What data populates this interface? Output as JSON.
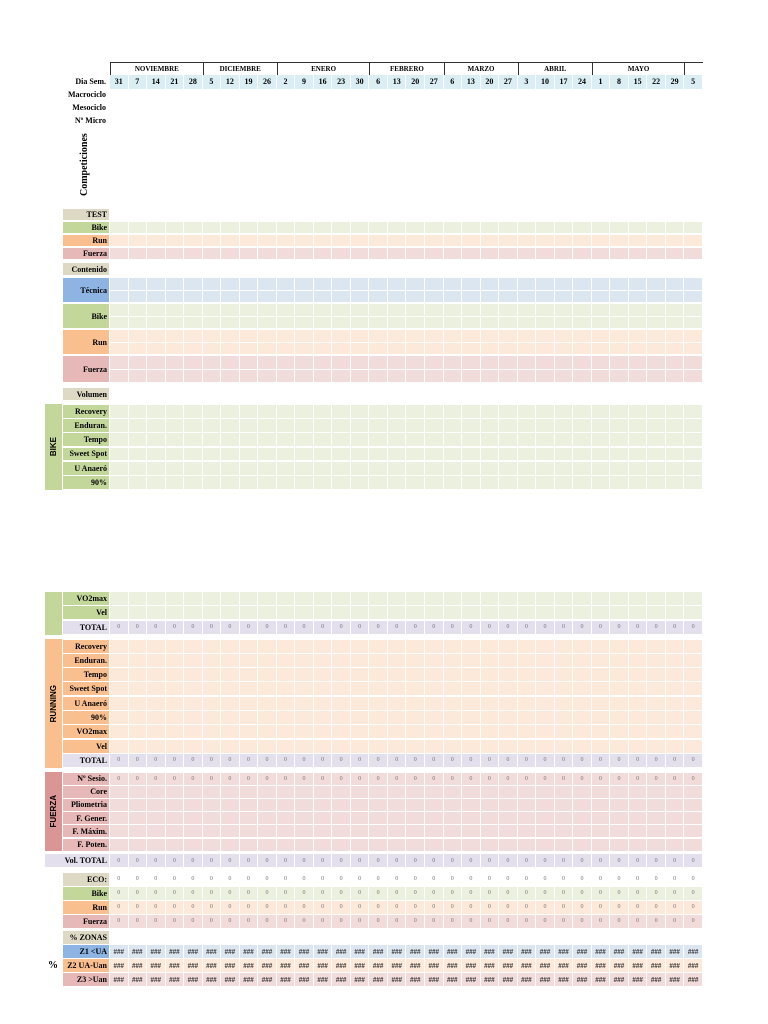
{
  "header": {
    "months": [
      {
        "name": "NOVIEMBRE",
        "span": 5
      },
      {
        "name": "DICIEMBRE",
        "span": 4
      },
      {
        "name": "ENERO",
        "span": 5
      },
      {
        "name": "FEBRERO",
        "span": 4
      },
      {
        "name": "MARZO",
        "span": 4
      },
      {
        "name": "ABRIL",
        "span": 4
      },
      {
        "name": "MAYO",
        "span": 5
      },
      {
        "name": "",
        "span": 1
      }
    ],
    "dates": [
      "31",
      "7",
      "14",
      "21",
      "28",
      "5",
      "12",
      "19",
      "26",
      "2",
      "9",
      "16",
      "23",
      "30",
      "6",
      "13",
      "20",
      "27",
      "6",
      "13",
      "20",
      "27",
      "3",
      "10",
      "17",
      "24",
      "1",
      "8",
      "15",
      "22",
      "29",
      "5"
    ],
    "dia_sem": "Dia Sem.",
    "macrociclo": "Macrociclo",
    "mesociclo": "Mesociclo",
    "micro": "Nº Micro",
    "competiciones": "Competiciones"
  },
  "side_labels": {
    "bike": "BIKE",
    "running": "RUNNING",
    "fuerza": "FUERZA",
    "percent": "%"
  },
  "rows": [
    {
      "label": "TEST",
      "theme": "test",
      "cells": false
    },
    {
      "label": "Bike",
      "theme": "bike",
      "cells": true,
      "value": ""
    },
    {
      "label": "Run",
      "theme": "run",
      "cells": true,
      "value": ""
    },
    {
      "label": "Fuerza",
      "theme": "fuerza",
      "cells": true,
      "value": ""
    },
    {
      "label": "Contenido",
      "theme": "test",
      "cells": false
    },
    {
      "label": "Técnica",
      "theme": "tecnica",
      "cells": true,
      "value": "",
      "split": true
    },
    {
      "label": "Bike",
      "theme": "bike",
      "cells": true,
      "value": "",
      "split": true
    },
    {
      "label": "Run",
      "theme": "run",
      "cells": true,
      "value": "",
      "split": true
    },
    {
      "label": "Fuerza",
      "theme": "fuerza",
      "cells": true,
      "value": "",
      "split": true
    },
    {
      "label": "Volumen",
      "theme": "test",
      "cells": false
    },
    {
      "label": "Recovery",
      "theme": "bike",
      "cells": true,
      "value": ""
    },
    {
      "label": "Enduran.",
      "theme": "bike",
      "cells": true,
      "value": ""
    },
    {
      "label": "Tempo",
      "theme": "bike",
      "cells": true,
      "value": ""
    },
    {
      "label": "Sweet Spot",
      "theme": "bike",
      "cells": true,
      "value": ""
    },
    {
      "label": "U Anaeró",
      "theme": "bike",
      "cells": true,
      "value": ""
    },
    {
      "label": "90%",
      "theme": "bike",
      "cells": true,
      "value": ""
    },
    {
      "label": "VO2max",
      "theme": "bike",
      "cells": true,
      "value": ""
    },
    {
      "label": "Vel",
      "theme": "bike",
      "cells": true,
      "value": ""
    },
    {
      "label": "TOTAL",
      "theme": "total",
      "cells": true,
      "value": "0"
    },
    {
      "label": "Recovery",
      "theme": "run",
      "cells": true,
      "value": ""
    },
    {
      "label": "Enduran.",
      "theme": "run",
      "cells": true,
      "value": ""
    },
    {
      "label": "Tempo",
      "theme": "run",
      "cells": true,
      "value": ""
    },
    {
      "label": "Sweet Spot",
      "theme": "run",
      "cells": true,
      "value": ""
    },
    {
      "label": "U Anaeró",
      "theme": "run",
      "cells": true,
      "value": ""
    },
    {
      "label": "90%",
      "theme": "run",
      "cells": true,
      "value": ""
    },
    {
      "label": "VO2max",
      "theme": "run",
      "cells": true,
      "value": ""
    },
    {
      "label": "Vel",
      "theme": "run",
      "cells": true,
      "value": ""
    },
    {
      "label": "TOTAL",
      "theme": "total",
      "cells": true,
      "value": "0"
    },
    {
      "label": "Nº Sesio.",
      "theme": "fuerza",
      "cells": true,
      "value": "0"
    },
    {
      "label": "Core",
      "theme": "fuerza",
      "cells": true,
      "value": ""
    },
    {
      "label": "Pliometria",
      "theme": "fuerza",
      "cells": true,
      "value": ""
    },
    {
      "label": "F. Gener.",
      "theme": "fuerza",
      "cells": true,
      "value": ""
    },
    {
      "label": "F. Máxim.",
      "theme": "fuerza",
      "cells": true,
      "value": ""
    },
    {
      "label": "F. Poten.",
      "theme": "fuerza",
      "cells": true,
      "value": ""
    },
    {
      "label": "Vol. TOTAL",
      "theme": "total",
      "cells": true,
      "value": "0",
      "wide": true
    },
    {
      "label": "ECO:",
      "theme": "test",
      "cells": true,
      "value": "0",
      "cellTheme": "plain"
    },
    {
      "label": "Bike",
      "theme": "bike",
      "cells": true,
      "value": "0"
    },
    {
      "label": "Run",
      "theme": "run",
      "cells": true,
      "value": "0"
    },
    {
      "label": "Fuerza",
      "theme": "fuerza",
      "cells": true,
      "value": "0"
    },
    {
      "label": "% ZONAS",
      "theme": "test",
      "cells": false
    },
    {
      "label": "Z1 <UA",
      "theme": "tecnica",
      "cells": true,
      "value": "###"
    },
    {
      "label": "Z2 UA-Uan",
      "theme": "run",
      "cells": true,
      "value": "###"
    },
    {
      "label": "Z3 >Uan",
      "theme": "fuerza",
      "cells": true,
      "value": "###"
    }
  ]
}
